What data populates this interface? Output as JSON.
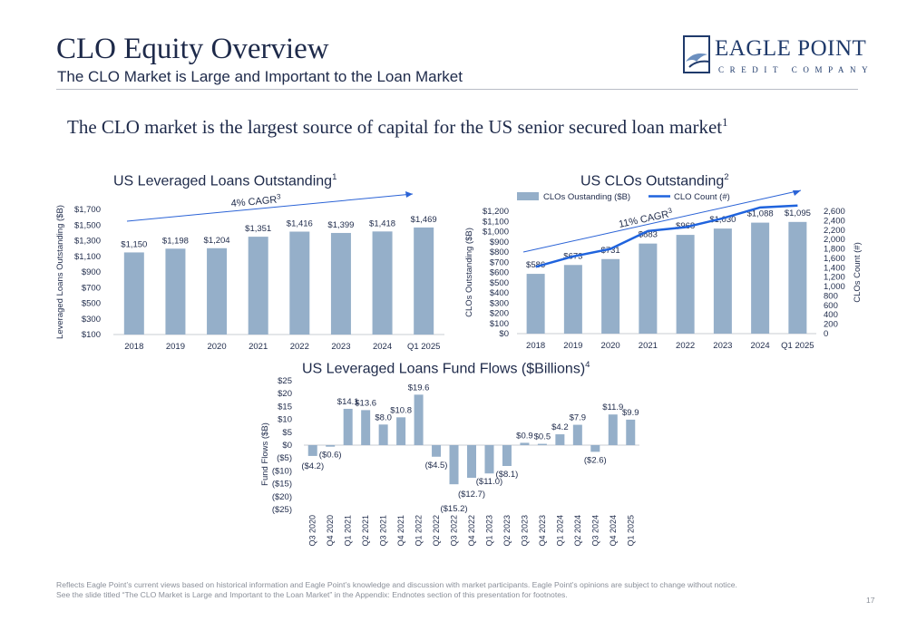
{
  "header": {
    "title": "CLO Equity Overview",
    "subtitle": "The CLO Market is Large and Important to the Loan Market",
    "logo_line1": "EAGLE POINT",
    "logo_line2": "CREDIT COMPANY"
  },
  "headline": {
    "text": "The CLO market is the largest source of capital for the US senior secured loan market",
    "sup": "1"
  },
  "colors": {
    "bar": "#95afc9",
    "line": "#1f63dd",
    "trend": "#2b63d6",
    "text": "#1e2a4a",
    "axis": "#c8ccd3"
  },
  "chart_titles": {
    "loans": {
      "text": "US Leveraged Loans Outstanding",
      "sup": "1"
    },
    "clos": {
      "text": "US CLOs Outstanding",
      "sup": "2"
    },
    "flows": {
      "text": "US Leveraged Loans Fund Flows ($Billions)",
      "sup": "4"
    }
  },
  "chart_data": [
    {
      "type": "bar",
      "categories": [
        "2018",
        "2019",
        "2020",
        "2021",
        "2022",
        "2023",
        "2024",
        "Q1 2025"
      ],
      "values": [
        1150,
        1198,
        1204,
        1351,
        1416,
        1399,
        1418,
        1469
      ],
      "labels": [
        "$1,150",
        "$1,198",
        "$1,204",
        "$1,351",
        "$1,416",
        "$1,399",
        "$1,418",
        "$1,469"
      ],
      "ylabel": "Leveraged Loans Outstanding ($B)",
      "ylim": [
        100,
        1700
      ],
      "yticks": [
        "$100",
        "$300",
        "$500",
        "$700",
        "$900",
        "$1,100",
        "$1,300",
        "$1,500",
        "$1,700"
      ],
      "annotation": {
        "text": "4% CAGR",
        "sup": "3"
      },
      "grid": false
    },
    {
      "type": "bar",
      "categories": [
        "2018",
        "2019",
        "2020",
        "2021",
        "2022",
        "2023",
        "2024",
        "Q1 2025"
      ],
      "series": [
        {
          "name": "CLOs Oustanding ($B)",
          "values": [
            586,
            673,
            731,
            883,
            968,
            1030,
            1088,
            1095
          ],
          "labels": [
            "$586",
            "$673",
            "$731",
            "$883",
            "$968",
            "$1,030",
            "$1,088",
            "$1,095"
          ]
        },
        {
          "name": "CLO Count (#)",
          "type": "line",
          "axis": "right",
          "values": [
            1420,
            1640,
            1800,
            2180,
            2260,
            2450,
            2680,
            2720
          ]
        }
      ],
      "ylabel": "CLOs Outstanding ($B)",
      "ylim": [
        0,
        1200
      ],
      "yticks": [
        "$0",
        "$100",
        "$200",
        "$300",
        "$400",
        "$500",
        "$600",
        "$700",
        "$800",
        "$900",
        "$1,000",
        "$1,100",
        "$1,200"
      ],
      "y2label": "CLOs Count (#)",
      "y2lim": [
        0,
        2600
      ],
      "y2ticks": [
        "0",
        "200",
        "400",
        "600",
        "800",
        "1,000",
        "1,200",
        "1,400",
        "1,600",
        "1,800",
        "2,000",
        "2,200",
        "2,400",
        "2,600"
      ],
      "annotation": {
        "text": "11% CAGR",
        "sup": "3"
      },
      "legend": "top-left",
      "grid": false
    },
    {
      "type": "bar",
      "categories": [
        "Q3 2020",
        "Q4 2020",
        "Q1 2021",
        "Q2 2021",
        "Q3 2021",
        "Q4 2021",
        "Q1 2022",
        "Q2 2022",
        "Q3 2022",
        "Q4 2022",
        "Q1 2023",
        "Q2 2023",
        "Q3 2023",
        "Q4 2023",
        "Q1 2024",
        "Q2 2024",
        "Q3 2024",
        "Q4 2024",
        "Q1 2025"
      ],
      "values": [
        -4.2,
        -0.6,
        14.1,
        13.6,
        8.0,
        10.8,
        19.6,
        -4.5,
        -15.2,
        -12.7,
        -11.0,
        -8.1,
        0.9,
        0.5,
        4.2,
        7.9,
        -2.6,
        11.9,
        9.9
      ],
      "labels": [
        "($4.2)",
        "($0.6)",
        "$14.1",
        "$13.6",
        "$8.0",
        "$10.8",
        "$19.6",
        "($4.5)",
        "($15.2)",
        "($12.7)",
        "($11.0)",
        "($8.1)",
        "$0.9",
        "$0.5",
        "$4.2",
        "$7.9",
        "($2.6)",
        "$11.9",
        "$9.9"
      ],
      "ylabel": "Fund Flows ($B)",
      "ylim": [
        -25,
        25
      ],
      "yticks": [
        "($25)",
        "($20)",
        "($15)",
        "($10)",
        "($5)",
        "$0",
        "$5",
        "$10",
        "$15",
        "$20",
        "$25"
      ],
      "grid": false
    }
  ],
  "footnote": {
    "line1": "Reflects Eagle Point’s current views based on historical information and Eagle Point’s knowledge and discussion with market participants. Eagle Point’s opinions are subject to change without notice.",
    "line2": "See the slide titled “The CLO Market is Large and Important to the Loan Market” in the Appendix: Endnotes section of this presentation for footnotes."
  },
  "page_number": "17"
}
